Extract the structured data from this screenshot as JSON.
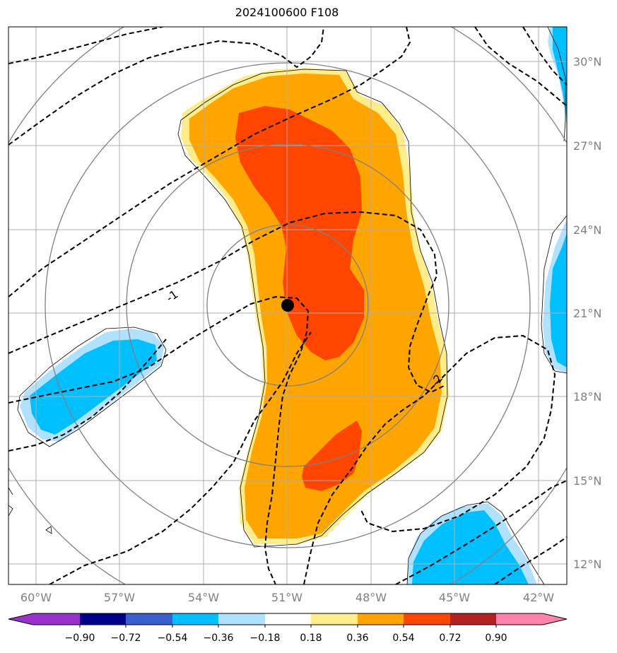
{
  "title": "2024100600 F108",
  "map": {
    "lon_ticks": [
      "60°W",
      "57°W",
      "54°W",
      "51°W",
      "48°W",
      "45°W",
      "42°W"
    ],
    "lat_ticks": [
      "30°N",
      "27°N",
      "24°N",
      "21°N",
      "18°N",
      "15°N",
      "12°N"
    ],
    "center_marker": {
      "lon": -51.0,
      "lat": 21.2
    },
    "contour_labels": [
      "-1",
      "-2"
    ],
    "colors": {
      "orange": "#ffa500",
      "red_orange": "#ff4500",
      "light_yellow": "#ffec8b",
      "deep_sky_blue": "#00bfff",
      "light_sky_blue": "#b0e2ff",
      "grid": "#b0b0b0",
      "range_rings": "#808080"
    }
  },
  "colorbar": {
    "labels": [
      "−0.90",
      "−0.72",
      "−0.54",
      "−0.36",
      "−0.18",
      "0.18",
      "0.36",
      "0.54",
      "0.72",
      "0.90"
    ],
    "colors": [
      "#9932cc",
      "#00008b",
      "#3a5fcd",
      "#00bfff",
      "#b0e2ff",
      "#ffffff",
      "#ffec8b",
      "#ffa500",
      "#ff4500",
      "#b22222",
      "#ff82ab"
    ]
  }
}
